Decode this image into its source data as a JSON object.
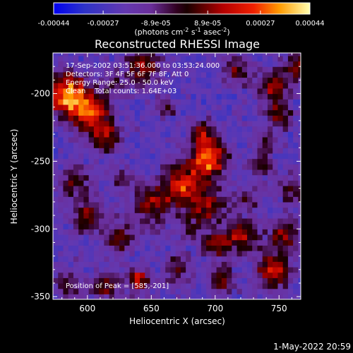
{
  "chart_data": {
    "type": "heatmap",
    "title": "Reconstructed RHESSI Image",
    "xlabel": "Heliocentric X (arcsec)",
    "ylabel": "Heliocentric Y (arcsec)",
    "xlim": [
      573,
      767
    ],
    "ylim": [
      -352,
      -170
    ],
    "x_ticks": [
      "600",
      "650",
      "700",
      "750"
    ],
    "y_ticks": [
      "-200",
      "-250",
      "-300",
      "-350"
    ],
    "x_tick_values": [
      600,
      650,
      700,
      750
    ],
    "y_tick_values": [
      -200,
      -250,
      -300,
      -350
    ],
    "colorbar": {
      "tick_labels": [
        "-0.00044",
        "-0.00027",
        "-8.9e-05",
        "8.9e-05",
        "0.00027",
        "0.00044"
      ],
      "label_main": "(photons cm",
      "label_sup1": "-2",
      "label_mid1": " s",
      "label_sup2": "-1",
      "label_mid2": " asec",
      "label_sup3": "-2",
      "label_end": ")",
      "vmin": -0.00044,
      "vmax": 0.00044
    },
    "annotations": {
      "time_range": "17-Sep-2002 03:51:36.000 to 03:53:24.000",
      "detectors": "Detectors: 3F 4F 5F 6F 7F 8F, Att 0",
      "energy_range": "Energy Range: 25.0 - 50.0 keV",
      "method_counts": "Clean    Total counts: 1.64E+03",
      "peak": "Position of Peak = [585,-201]"
    },
    "features": [
      {
        "x": 585,
        "y": -201,
        "sigma": 11,
        "amp": 1.0
      },
      {
        "x": 603,
        "y": -215,
        "sigma": 10,
        "amp": 0.8
      },
      {
        "x": 615,
        "y": -232,
        "sigma": 8,
        "amp": 0.55
      },
      {
        "x": 643,
        "y": -180,
        "sigma": 9,
        "amp": 0.6
      },
      {
        "x": 695,
        "y": -248,
        "sigma": 10,
        "amp": 0.9
      },
      {
        "x": 675,
        "y": -268,
        "sigma": 11,
        "amp": 0.75
      },
      {
        "x": 650,
        "y": -282,
        "sigma": 10,
        "amp": 0.55
      },
      {
        "x": 695,
        "y": -283,
        "sigma": 9,
        "amp": 0.55
      },
      {
        "x": 690,
        "y": -230,
        "sigma": 7,
        "amp": 0.45
      },
      {
        "x": 600,
        "y": -290,
        "sigma": 9,
        "amp": 0.5
      },
      {
        "x": 625,
        "y": -306,
        "sigma": 8,
        "amp": 0.5
      },
      {
        "x": 590,
        "y": -265,
        "sigma": 8,
        "amp": 0.45
      },
      {
        "x": 720,
        "y": -305,
        "sigma": 9,
        "amp": 0.6
      },
      {
        "x": 700,
        "y": -312,
        "sigma": 7,
        "amp": 0.5
      },
      {
        "x": 745,
        "y": -330,
        "sigma": 9,
        "amp": 0.7
      },
      {
        "x": 755,
        "y": -305,
        "sigma": 8,
        "amp": 0.55
      },
      {
        "x": 745,
        "y": -195,
        "sigma": 8,
        "amp": 0.55
      },
      {
        "x": 750,
        "y": -215,
        "sigma": 7,
        "amp": 0.5
      },
      {
        "x": 765,
        "y": -180,
        "sigma": 8,
        "amp": 0.5
      },
      {
        "x": 718,
        "y": -183,
        "sigma": 7,
        "amp": 0.5
      },
      {
        "x": 640,
        "y": -338,
        "sigma": 6,
        "amp": 0.75
      },
      {
        "x": 615,
        "y": -342,
        "sigma": 7,
        "amp": 0.5
      },
      {
        "x": 670,
        "y": -330,
        "sigma": 7,
        "amp": 0.45
      },
      {
        "x": 705,
        "y": -338,
        "sigma": 7,
        "amp": 0.5
      },
      {
        "x": 735,
        "y": -252,
        "sigma": 6,
        "amp": 0.45
      },
      {
        "x": 760,
        "y": -270,
        "sigma": 7,
        "amp": 0.45
      },
      {
        "x": 727,
        "y": -278,
        "sigma": 6,
        "amp": 0.4
      },
      {
        "x": 660,
        "y": -210,
        "sigma": 6,
        "amp": 0.35
      },
      {
        "x": 625,
        "y": -262,
        "sigma": 6,
        "amp": 0.35
      },
      {
        "x": 585,
        "y": -340,
        "sigma": 8,
        "amp": 0.35
      },
      {
        "x": 740,
        "y": -235,
        "sigma": 6,
        "amp": 0.35
      },
      {
        "x": 680,
        "y": -300,
        "sigma": 6,
        "amp": 0.35
      },
      {
        "x": 620,
        "y": -192,
        "sigma": 6,
        "amp": 0.3
      }
    ]
  },
  "footer": {
    "timestamp": "1-May-2022 20:59"
  }
}
